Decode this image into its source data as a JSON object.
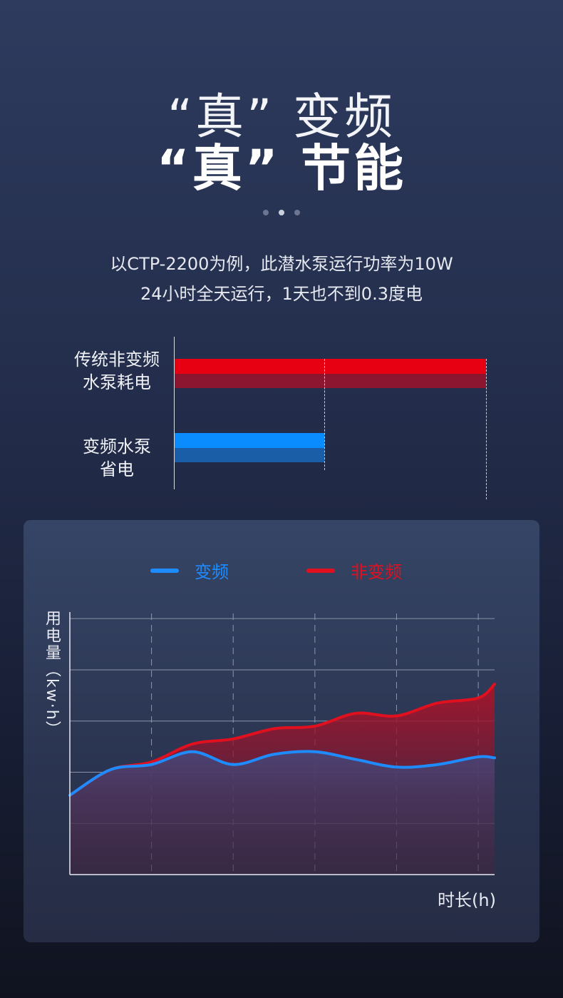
{
  "header": {
    "title_line1": "“真” 变频",
    "title_line2": "“真” 节能"
  },
  "pagination": {
    "count": 3,
    "active_index": 1
  },
  "description": {
    "line1": "以CTP-2200为例，此潜水泵运行功率为10W",
    "line2": "24小时全天运行，1天也不到0.3度电"
  },
  "comparison": {
    "non_inverter_label_line1": "传统非变频",
    "non_inverter_label_line2": "水泵耗电",
    "inverter_label_line1": "变频水泵",
    "inverter_label_line2": "省电",
    "non_inverter_relative": 1.0,
    "inverter_relative": 0.48
  },
  "colors": {
    "red_light": "#e60012",
    "red_dark": "#8c1630",
    "blue_light": "#0a8cff",
    "blue_dark": "#1a5ea8"
  },
  "chart": {
    "legend_inverter": "变频",
    "legend_non_inverter": "非变频",
    "inverter_color": "#1e8bff",
    "non_inverter_color": "#e0101e",
    "ylabel": "用电量（kw·h）",
    "xlabel": "时长(h)"
  },
  "chart_data": {
    "type": "area",
    "x": [
      0,
      0.5,
      1,
      1.5,
      2,
      2.5,
      3,
      3.5,
      4,
      4.5,
      5,
      5.2
    ],
    "series": [
      {
        "name": "变频",
        "values": [
          1.55,
          2.05,
          2.15,
          2.4,
          2.15,
          2.35,
          2.4,
          2.25,
          2.1,
          2.15,
          2.3,
          2.28
        ]
      },
      {
        "name": "非变频",
        "values": [
          1.55,
          2.05,
          2.2,
          2.55,
          2.65,
          2.85,
          2.9,
          3.15,
          3.1,
          3.35,
          3.45,
          3.72
        ]
      }
    ],
    "ylim": [
      0,
      5.1
    ],
    "xlim": [
      0,
      5.2
    ],
    "grid": true
  }
}
